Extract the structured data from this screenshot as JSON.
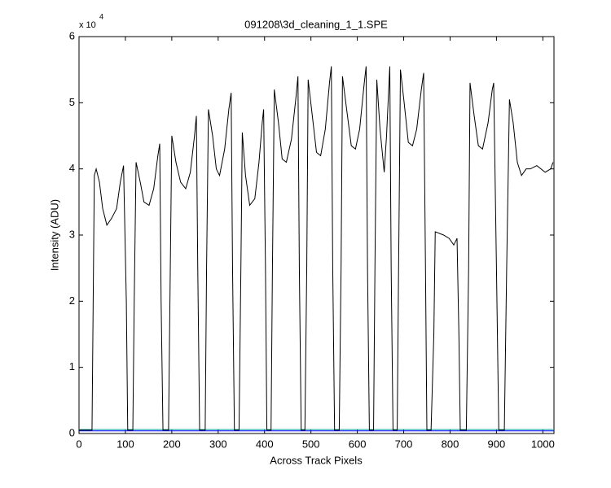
{
  "chart_data": {
    "type": "line",
    "title": "091208\\3d_cleaning_1_1.SPE",
    "xlabel": "Across Track Pixels",
    "ylabel": "Intensity (ADU)",
    "y_multiplier": {
      "base": "x 10",
      "exponent": "4"
    },
    "xlim": [
      0,
      1024
    ],
    "xticks": [
      0,
      100,
      200,
      300,
      400,
      500,
      600,
      700,
      800,
      900,
      1000
    ],
    "ylim": [
      0,
      6
    ],
    "yticks": [
      0,
      1,
      2,
      3,
      4,
      5,
      6
    ],
    "grid": false,
    "series": [
      {
        "color": "#0000ff",
        "x": [
          0,
          1024
        ],
        "values": [
          0.04,
          0.04
        ]
      },
      {
        "color": "#00a0a0",
        "x": [
          0,
          1024
        ],
        "values": [
          0.06,
          0.06
        ]
      },
      {
        "color": "#000000",
        "x": [
          0,
          28,
          33,
          37,
          44,
          51,
          60,
          70,
          81,
          89,
          96,
          102,
          105,
          116,
          119,
          123,
          132,
          140,
          151,
          161,
          170,
          174,
          177,
          181,
          193,
          196,
          200,
          209,
          219,
          230,
          240,
          249,
          253,
          256,
          260,
          272,
          275,
          279,
          288,
          296,
          303,
          314,
          323,
          328,
          331,
          335,
          345,
          349,
          352,
          359,
          368,
          379,
          388,
          395,
          398,
          402,
          405,
          414,
          417,
          421,
          430,
          438,
          447,
          458,
          468,
          472,
          475,
          479,
          487,
          491,
          494,
          503,
          512,
          521,
          531,
          540,
          544,
          547,
          551,
          561,
          565,
          568,
          577,
          587,
          596,
          605,
          615,
          619,
          622,
          626,
          635,
          638,
          642,
          649,
          658,
          663,
          670,
          673,
          677,
          686,
          689,
          693,
          701,
          710,
          719,
          728,
          738,
          743,
          747,
          750,
          759,
          765,
          768,
          786,
          798,
          808,
          815,
          819,
          822,
          835,
          840,
          843,
          852,
          861,
          870,
          882,
          891,
          894,
          900,
          905,
          917,
          922,
          928,
          936,
          945,
          954,
          964,
          973,
          987,
          1005,
          1017,
          1022
        ],
        "values": [
          0.05,
          0.05,
          3.9,
          4.0,
          3.8,
          3.4,
          3.15,
          3.25,
          3.4,
          3.8,
          4.05,
          2.0,
          0.05,
          0.05,
          2.0,
          4.1,
          3.8,
          3.5,
          3.45,
          3.7,
          4.2,
          4.38,
          2.0,
          0.05,
          0.05,
          2.0,
          4.5,
          4.1,
          3.8,
          3.7,
          3.95,
          4.5,
          4.8,
          2.5,
          0.05,
          0.05,
          2.5,
          4.9,
          4.5,
          4.0,
          3.9,
          4.3,
          4.9,
          5.15,
          2.5,
          0.05,
          0.05,
          2.5,
          4.55,
          3.9,
          3.45,
          3.55,
          4.1,
          4.7,
          4.9,
          2.5,
          0.05,
          0.05,
          2.5,
          5.2,
          4.7,
          4.15,
          4.1,
          4.45,
          5.1,
          5.4,
          2.5,
          0.05,
          0.05,
          2.5,
          5.35,
          4.8,
          4.25,
          4.2,
          4.6,
          5.3,
          5.55,
          2.5,
          0.05,
          0.05,
          2.5,
          5.4,
          4.9,
          4.35,
          4.3,
          4.6,
          5.3,
          5.55,
          2.5,
          0.05,
          0.05,
          2.5,
          5.35,
          4.6,
          3.95,
          4.5,
          5.55,
          2.5,
          0.05,
          0.05,
          2.5,
          5.5,
          5.0,
          4.4,
          4.35,
          4.6,
          5.2,
          5.45,
          2.5,
          0.05,
          0.05,
          1.5,
          3.05,
          3.0,
          2.95,
          2.85,
          2.95,
          1.5,
          0.05,
          0.05,
          2.5,
          5.3,
          4.8,
          4.35,
          4.3,
          4.7,
          5.2,
          5.3,
          2.5,
          0.05,
          0.05,
          2.5,
          5.05,
          4.7,
          4.1,
          3.9,
          4.0,
          4.0,
          4.05,
          3.95,
          4.0,
          4.1
        ]
      }
    ]
  }
}
